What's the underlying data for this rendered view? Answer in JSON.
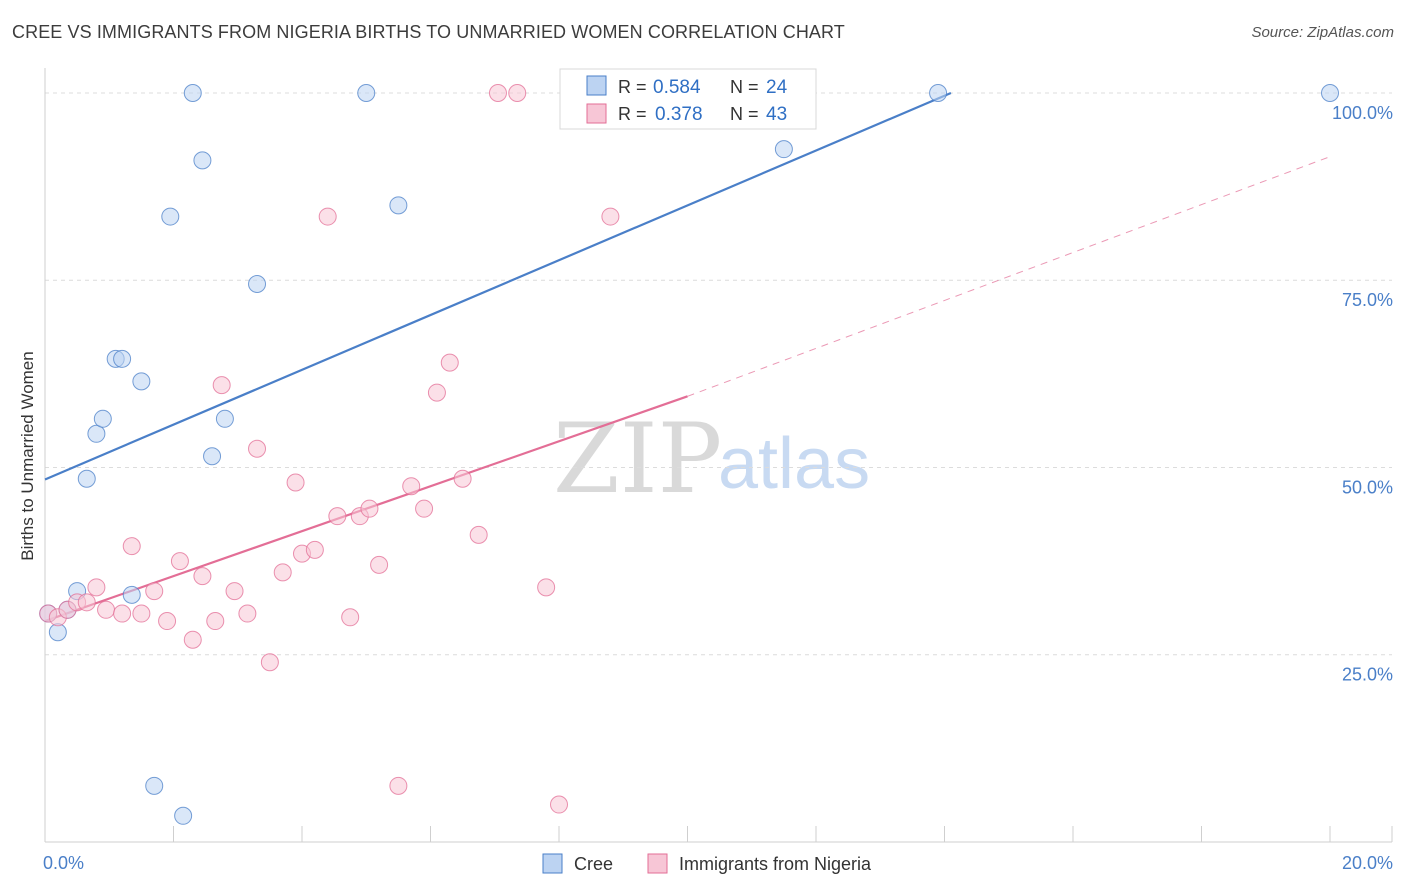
{
  "title": "CREE VS IMMIGRANTS FROM NIGERIA BIRTHS TO UNMARRIED WOMEN CORRELATION CHART",
  "source": "Source: ZipAtlas.com",
  "watermark": {
    "zip": "ZIP",
    "atlas": "atlas"
  },
  "colors": {
    "cree": "#4a7fc8",
    "cree_fill": "#bcd3f2",
    "nigeria": "#e36e96",
    "nigeria_fill": "#f7c6d6",
    "axis_text": "#4a7fc8",
    "grid": "#dcdcdc"
  },
  "legend": {
    "rows": [
      {
        "r_label": "R = ",
        "r_value": "0.584",
        "n_label": "N = ",
        "n_value": "24"
      },
      {
        "r_label": "R = ",
        "r_value": "0.378",
        "n_label": "N = ",
        "n_value": "43"
      }
    ]
  },
  "chart_data": {
    "type": "scatter",
    "title": "CREE VS IMMIGRANTS FROM NIGERIA BIRTHS TO UNMARRIED WOMEN CORRELATION CHART",
    "xlabel": "",
    "ylabel": "Births to Unmarried Women",
    "xlim": [
      0,
      20
    ],
    "ylim": [
      0,
      102
    ],
    "x_tick_labels": [
      {
        "value": 0,
        "label": "0.0%"
      },
      {
        "value": 20,
        "label": "20.0%"
      }
    ],
    "y_tick_labels": [
      {
        "value": 25,
        "label": "25.0%"
      },
      {
        "value": 50,
        "label": "50.0%"
      },
      {
        "value": 75,
        "label": "75.0%"
      },
      {
        "value": 100,
        "label": "100.0%"
      }
    ],
    "x_minor_ticks": [
      0,
      2,
      4,
      6,
      8,
      10,
      12,
      14,
      16,
      18,
      20
    ],
    "series": [
      {
        "name": "Cree",
        "r": 0.584,
        "n": 24,
        "trend": {
          "x": [
            0,
            14.1
          ],
          "y": [
            48.4,
            100
          ],
          "dashed_extension": false
        },
        "points": [
          [
            0.05,
            30.5
          ],
          [
            0.2,
            28.0
          ],
          [
            0.35,
            31.0
          ],
          [
            0.5,
            33.5
          ],
          [
            0.65,
            48.5
          ],
          [
            0.8,
            54.5
          ],
          [
            0.9,
            56.5
          ],
          [
            1.1,
            64.5
          ],
          [
            1.2,
            64.5
          ],
          [
            1.5,
            61.5
          ],
          [
            1.35,
            33.0
          ],
          [
            1.7,
            7.5
          ],
          [
            1.95,
            83.5
          ],
          [
            2.15,
            3.5
          ],
          [
            2.3,
            100
          ],
          [
            2.45,
            91.0
          ],
          [
            2.6,
            51.5
          ],
          [
            2.8,
            56.5
          ],
          [
            3.3,
            74.5
          ],
          [
            5.0,
            100
          ],
          [
            5.5,
            85.0
          ],
          [
            11.5,
            92.5
          ],
          [
            13.9,
            100
          ],
          [
            20.0,
            100
          ]
        ]
      },
      {
        "name": "Immigrants from Nigeria",
        "r": 0.378,
        "n": 43,
        "trend": {
          "x": [
            0,
            10.0
          ],
          "y": [
            29.5,
            59.5
          ],
          "dashed_extension": true,
          "extension": {
            "x": [
              10.0,
              20.0
            ],
            "y": [
              59.5,
              91.5
            ]
          }
        },
        "points": [
          [
            0.05,
            30.5
          ],
          [
            0.2,
            30.0
          ],
          [
            0.35,
            31.0
          ],
          [
            0.5,
            32.0
          ],
          [
            0.65,
            32.0
          ],
          [
            0.8,
            34.0
          ],
          [
            0.95,
            31.0
          ],
          [
            1.2,
            30.5
          ],
          [
            1.35,
            39.5
          ],
          [
            1.5,
            30.5
          ],
          [
            1.7,
            33.5
          ],
          [
            1.9,
            29.5
          ],
          [
            2.1,
            37.5
          ],
          [
            2.3,
            27.0
          ],
          [
            2.45,
            35.5
          ],
          [
            2.65,
            29.5
          ],
          [
            2.75,
            61.0
          ],
          [
            2.95,
            33.5
          ],
          [
            3.15,
            30.5
          ],
          [
            3.3,
            52.5
          ],
          [
            3.5,
            24.0
          ],
          [
            3.7,
            36.0
          ],
          [
            3.9,
            48.0
          ],
          [
            4.0,
            38.5
          ],
          [
            4.2,
            39.0
          ],
          [
            4.4,
            83.5
          ],
          [
            4.55,
            43.5
          ],
          [
            4.75,
            30.0
          ],
          [
            4.9,
            43.5
          ],
          [
            5.05,
            44.5
          ],
          [
            5.2,
            37.0
          ],
          [
            5.5,
            7.5
          ],
          [
            5.7,
            47.5
          ],
          [
            5.9,
            44.5
          ],
          [
            6.1,
            60.0
          ],
          [
            6.3,
            64.0
          ],
          [
            6.5,
            48.5
          ],
          [
            6.75,
            41.0
          ],
          [
            7.05,
            100
          ],
          [
            7.35,
            100
          ],
          [
            7.8,
            34.0
          ],
          [
            8.0,
            5.0
          ],
          [
            8.8,
            83.5
          ]
        ]
      }
    ]
  },
  "bottom_legend": [
    {
      "label": "Cree"
    },
    {
      "label": "Immigrants from Nigeria"
    }
  ]
}
